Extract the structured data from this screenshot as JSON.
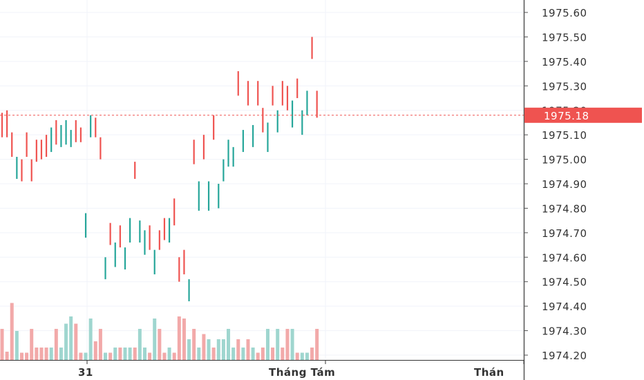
{
  "chart_data": {
    "type": "ohlc",
    "y_axis": {
      "min": 1974.2,
      "max": 1975.6,
      "step": 0.1,
      "ticks": [
        "1975.60",
        "1975.50",
        "1975.40",
        "1975.30",
        "1975.20",
        "1975.10",
        "1975.00",
        "1974.90",
        "1974.80",
        "1974.70",
        "1974.60",
        "1974.50",
        "1974.40",
        "1974.30",
        "1974.20"
      ],
      "position": "right"
    },
    "x_axis": {
      "ticks": [
        "31",
        "Tháng Tám",
        "Thán"
      ]
    },
    "current_price": {
      "label": "1975.18",
      "value": 1975.18,
      "color": "#ef5350"
    },
    "colors": {
      "up": "#26a69a",
      "down": "#ef5350",
      "volume_up": "#9fd6cf",
      "volume_down": "#f2a9a9"
    },
    "bars": [
      {
        "high": 1975.19,
        "low": 1975.09,
        "up": false,
        "vol": 0.3
      },
      {
        "high": 1975.2,
        "low": 1975.09,
        "up": false,
        "vol": 0.08
      },
      {
        "high": 1975.11,
        "low": 1975.01,
        "up": false,
        "vol": 0.55
      },
      {
        "high": 1975.01,
        "low": 1974.92,
        "up": true,
        "vol": 0.28
      },
      {
        "high": 1975.0,
        "low": 1974.91,
        "up": false,
        "vol": 0.07
      },
      {
        "high": 1975.11,
        "low": 1975.01,
        "up": false,
        "vol": 0.07
      },
      {
        "high": 1975.0,
        "low": 1974.91,
        "up": false,
        "vol": 0.3
      },
      {
        "high": 1975.08,
        "low": 1974.99,
        "up": false,
        "vol": 0.12
      },
      {
        "high": 1975.08,
        "low": 1975.0,
        "up": false,
        "vol": 0.12
      },
      {
        "high": 1975.1,
        "low": 1975.01,
        "up": false,
        "vol": 0.12
      },
      {
        "high": 1975.13,
        "low": 1975.03,
        "up": true,
        "vol": 0.12
      },
      {
        "high": 1975.16,
        "low": 1975.06,
        "up": false,
        "vol": 0.3
      },
      {
        "high": 1975.14,
        "low": 1975.05,
        "up": true,
        "vol": 0.12
      },
      {
        "high": 1975.16,
        "low": 1975.06,
        "up": true,
        "vol": 0.35
      },
      {
        "high": 1975.12,
        "low": 1975.05,
        "up": true,
        "vol": 0.42
      },
      {
        "high": 1975.16,
        "low": 1975.07,
        "up": false,
        "vol": 0.35
      },
      {
        "high": 1975.13,
        "low": 1975.07,
        "up": false,
        "vol": 0.07
      },
      {
        "high": 1974.78,
        "low": 1974.68,
        "up": true,
        "vol": 0.07
      },
      {
        "high": 1975.18,
        "low": 1975.09,
        "up": true,
        "vol": 0.4
      },
      {
        "high": 1975.17,
        "low": 1975.09,
        "up": false,
        "vol": 0.18
      },
      {
        "high": 1975.09,
        "low": 1975.0,
        "up": false,
        "vol": 0.3
      },
      {
        "high": 1974.6,
        "low": 1974.51,
        "up": true,
        "vol": 0.07
      },
      {
        "high": 1974.74,
        "low": 1974.65,
        "up": false,
        "vol": 0.07
      },
      {
        "high": 1974.66,
        "low": 1974.56,
        "up": true,
        "vol": 0.12
      },
      {
        "high": 1974.73,
        "low": 1974.64,
        "up": false,
        "vol": 0.12
      },
      {
        "high": 1974.64,
        "low": 1974.55,
        "up": true,
        "vol": 0.12
      },
      {
        "high": 1974.76,
        "low": 1974.66,
        "up": true,
        "vol": 0.12
      },
      {
        "high": 1974.99,
        "low": 1974.92,
        "up": false,
        "vol": 0.12
      },
      {
        "high": 1974.75,
        "low": 1974.66,
        "up": true,
        "vol": 0.3
      },
      {
        "high": 1974.71,
        "low": 1974.61,
        "up": true,
        "vol": 0.12
      },
      {
        "high": 1974.73,
        "low": 1974.63,
        "up": false,
        "vol": 0.07
      },
      {
        "high": 1974.63,
        "low": 1974.53,
        "up": true,
        "vol": 0.4
      },
      {
        "high": 1974.71,
        "low": 1974.63,
        "up": false,
        "vol": 0.3
      },
      {
        "high": 1974.76,
        "low": 1974.67,
        "up": false,
        "vol": 0.07
      },
      {
        "high": 1974.76,
        "low": 1974.66,
        "up": true,
        "vol": 0.12
      },
      {
        "high": 1974.84,
        "low": 1974.73,
        "up": false,
        "vol": 0.07
      },
      {
        "high": 1974.6,
        "low": 1974.5,
        "up": false,
        "vol": 0.42
      },
      {
        "high": 1974.63,
        "low": 1974.53,
        "up": false,
        "vol": 0.4
      },
      {
        "high": 1974.51,
        "low": 1974.42,
        "up": true,
        "vol": 0.2
      },
      {
        "high": 1975.08,
        "low": 1974.98,
        "up": false,
        "vol": 0.3
      },
      {
        "high": 1974.91,
        "low": 1974.79,
        "up": true,
        "vol": 0.12
      },
      {
        "high": 1975.1,
        "low": 1975.0,
        "up": false,
        "vol": 0.25
      },
      {
        "high": 1974.91,
        "low": 1974.79,
        "up": true,
        "vol": 0.2
      },
      {
        "high": 1975.18,
        "low": 1975.08,
        "up": false,
        "vol": 0.12
      },
      {
        "high": 1974.9,
        "low": 1974.8,
        "up": true,
        "vol": 0.2
      },
      {
        "high": 1975.0,
        "low": 1974.91,
        "up": true,
        "vol": 0.2
      },
      {
        "high": 1975.08,
        "low": 1974.97,
        "up": true,
        "vol": 0.3
      },
      {
        "high": 1975.05,
        "low": 1974.97,
        "up": true,
        "vol": 0.12
      },
      {
        "high": 1975.36,
        "low": 1975.26,
        "up": false,
        "vol": 0.2
      },
      {
        "high": 1975.12,
        "low": 1975.03,
        "up": true,
        "vol": 0.12
      },
      {
        "high": 1975.32,
        "low": 1975.22,
        "up": false,
        "vol": 0.2
      },
      {
        "high": 1975.14,
        "low": 1975.05,
        "up": true,
        "vol": 0.12
      },
      {
        "high": 1975.32,
        "low": 1975.22,
        "up": false,
        "vol": 0.07
      },
      {
        "high": 1975.21,
        "low": 1975.11,
        "up": false,
        "vol": 0.12
      },
      {
        "high": 1975.15,
        "low": 1975.03,
        "up": true,
        "vol": 0.3
      },
      {
        "high": 1975.3,
        "low": 1975.22,
        "up": false,
        "vol": 0.12
      },
      {
        "high": 1975.2,
        "low": 1975.11,
        "up": true,
        "vol": 0.3
      },
      {
        "high": 1975.32,
        "low": 1975.22,
        "up": false,
        "vol": 0.12
      },
      {
        "high": 1975.3,
        "low": 1975.2,
        "up": false,
        "vol": 0.3
      },
      {
        "high": 1975.24,
        "low": 1975.13,
        "up": true,
        "vol": 0.3
      },
      {
        "high": 1975.33,
        "low": 1975.25,
        "up": false,
        "vol": 0.07
      },
      {
        "high": 1975.2,
        "low": 1975.1,
        "up": true,
        "vol": 0.07
      },
      {
        "high": 1975.28,
        "low": 1975.18,
        "up": true,
        "vol": 0.07
      },
      {
        "high": 1975.5,
        "low": 1975.41,
        "up": false,
        "vol": 0.12
      },
      {
        "high": 1975.28,
        "low": 1975.17,
        "up": false,
        "vol": 0.3
      }
    ]
  }
}
